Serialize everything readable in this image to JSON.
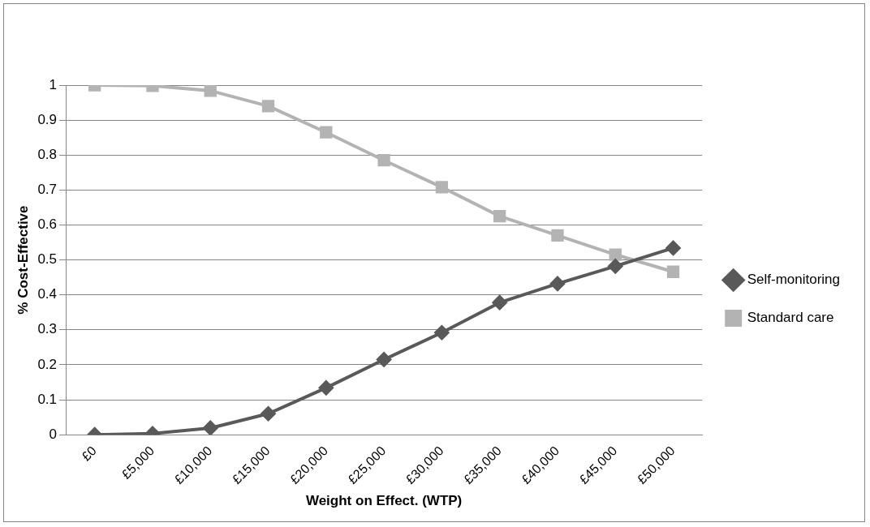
{
  "chart_data": {
    "type": "line",
    "xlabel": "Weight on Effect. (WTP)",
    "ylabel": "% Cost-Effective",
    "categories": [
      "£0",
      "£5,000",
      "£10,000",
      "£15,000",
      "£20,000",
      "£25,000",
      "£30,000",
      "£35,000",
      "£40,000",
      "£45,000",
      "£50,000"
    ],
    "series": [
      {
        "name": "Self-monitoring",
        "color": "#595959",
        "marker": "diamond",
        "values": [
          0,
          0.003,
          0.019,
          0.06,
          0.134,
          0.215,
          0.292,
          0.378,
          0.432,
          0.482,
          0.534
        ]
      },
      {
        "name": "Standard care",
        "color": "#b3b3b3",
        "marker": "square",
        "values": [
          1,
          0.998,
          0.984,
          0.94,
          0.865,
          0.785,
          0.708,
          0.625,
          0.57,
          0.515,
          0.466
        ]
      }
    ],
    "ylim": [
      0,
      1
    ],
    "yticks": [
      0,
      0.1,
      0.2,
      0.3,
      0.4,
      0.5,
      0.6,
      0.7,
      0.8,
      0.9,
      1
    ],
    "grid": "y",
    "legend": "right",
    "line_style": "solid"
  }
}
